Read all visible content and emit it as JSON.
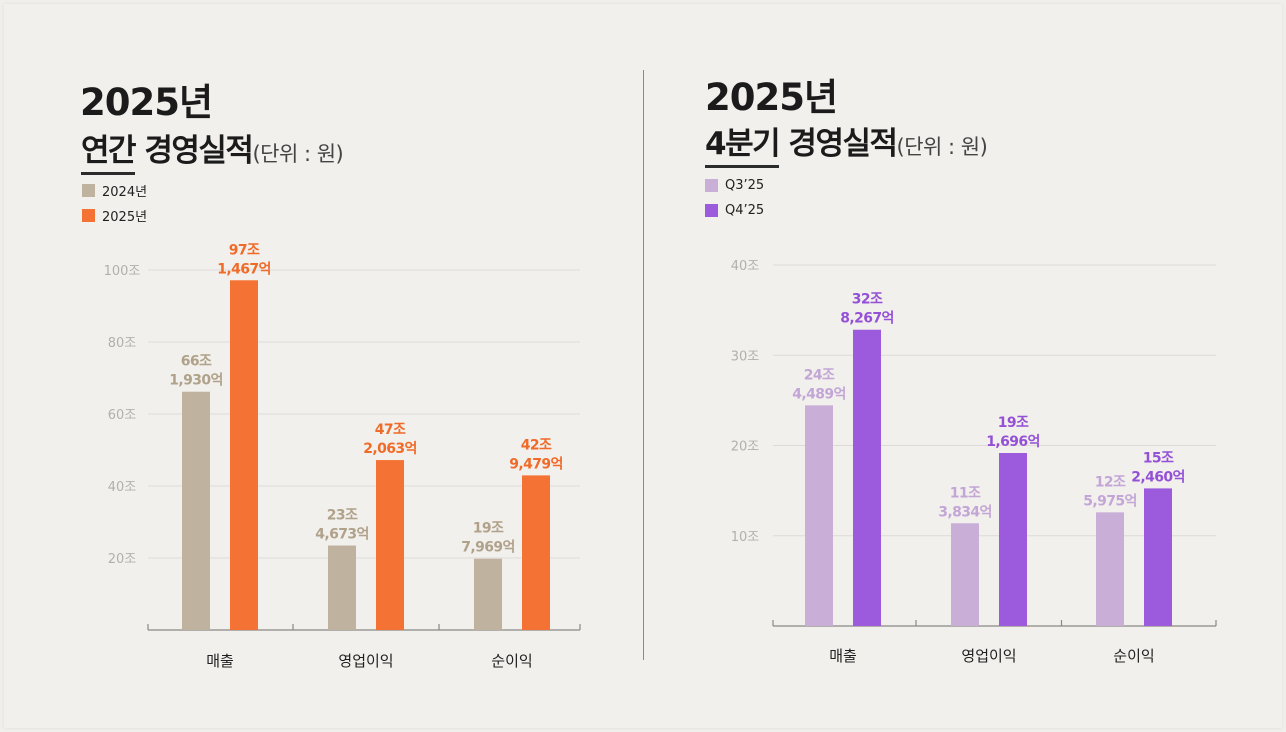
{
  "left": {
    "year_title": "2025년",
    "title_underlined": "연간",
    "title_rest": "경영실적",
    "unit": "(단위 : 원)"
  },
  "right": {
    "year_title": "2025년",
    "title_underlined": "4분기",
    "title_rest": "경영실적",
    "unit": "(단위 : 원)"
  },
  "chart_data": [
    {
      "type": "bar",
      "categories": [
        "매출",
        "영업이익",
        "순이익"
      ],
      "series": [
        {
          "name": "2024년",
          "color": "#bfb29f",
          "values": [
            66.193,
            23.4673,
            19.7969
          ],
          "labels": [
            [
              "66조",
              "1,930억"
            ],
            [
              "23조",
              "4,673억"
            ],
            [
              "19조",
              "7,969억"
            ]
          ]
        },
        {
          "name": "2025년",
          "color": "#f47334",
          "values": [
            97.1467,
            47.2063,
            42.9479
          ],
          "labels": [
            [
              "97조",
              "1,467억"
            ],
            [
              "47조",
              "2,063억"
            ],
            [
              "42조",
              "9,479억"
            ]
          ]
        }
      ],
      "yticks": [
        "20조",
        "40조",
        "60조",
        "80조",
        "100조"
      ],
      "ytick_values": [
        20,
        40,
        60,
        80,
        100
      ],
      "ylim": [
        0,
        100
      ],
      "grid": true,
      "legend_position": "top-left"
    },
    {
      "type": "bar",
      "categories": [
        "매출",
        "영업이익",
        "순이익"
      ],
      "series": [
        {
          "name": "Q3’25",
          "color": "#c9afd8",
          "values": [
            24.4489,
            11.3834,
            12.5975
          ],
          "labels": [
            [
              "24조",
              "4,489억"
            ],
            [
              "11조",
              "3,834억"
            ],
            [
              "12조",
              "5,975억"
            ]
          ]
        },
        {
          "name": "Q4’25",
          "color": "#9c5bdc",
          "values": [
            32.8267,
            19.1696,
            15.246
          ],
          "labels": [
            [
              "32조",
              "8,267억"
            ],
            [
              "19조",
              "1,696억"
            ],
            [
              "15조",
              "2,460억"
            ]
          ]
        }
      ],
      "yticks": [
        "10조",
        "20조",
        "30조",
        "40조"
      ],
      "ytick_values": [
        10,
        20,
        30,
        40
      ],
      "ylim": [
        0,
        40
      ],
      "grid": true,
      "legend_position": "top-left"
    }
  ],
  "colors": {
    "bar_2024": "#bfb29f",
    "bar_2025": "#f47334",
    "label_2024": "#b0a28a",
    "label_2025": "#f06a28",
    "bar_q3": "#c9afd8",
    "bar_q4": "#9c5bdc",
    "label_q3": "#c3a6d6",
    "label_q4": "#9451d6"
  }
}
